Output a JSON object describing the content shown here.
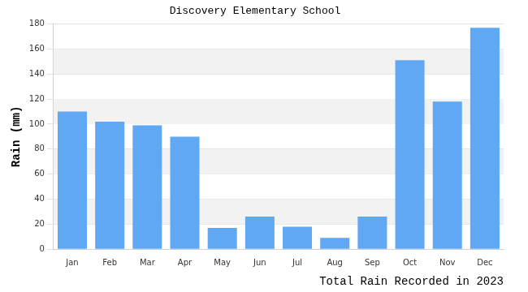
{
  "chart_data": {
    "type": "bar",
    "title": "Discovery Elementary School",
    "y_label": "Rain (mm)",
    "x_label": "Total Rain Recorded in 2023",
    "categories": [
      "Jan",
      "Feb",
      "Mar",
      "Apr",
      "May",
      "Jun",
      "Jul",
      "Aug",
      "Sep",
      "Oct",
      "Nov",
      "Dec"
    ],
    "values": [
      110,
      102,
      99,
      90,
      17,
      26,
      18,
      9,
      26,
      151,
      118,
      177
    ],
    "color": "#60a8f4",
    "ylim": [
      0,
      180
    ],
    "yticks": [
      0,
      20,
      40,
      60,
      80,
      100,
      120,
      140,
      160,
      180
    ],
    "grid": true
  }
}
